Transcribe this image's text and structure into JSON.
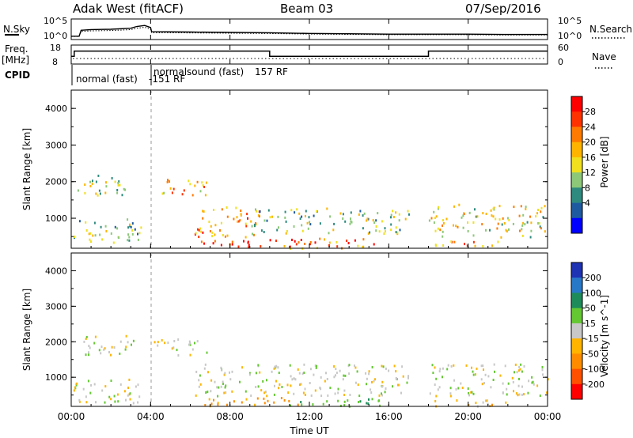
{
  "header": {
    "title": "Adak West (fitACF)",
    "beam": "Beam 03",
    "date": "07/Sep/2016"
  },
  "noise_panel": {
    "left_label": "N.Sky",
    "right_label": "N.Search",
    "left_ticks": [
      "10^5",
      "10^0"
    ],
    "right_ticks": [
      "10^5",
      "10^0"
    ]
  },
  "freq_panel": {
    "left_label_1": "Freq.",
    "left_label_2": "[MHz]",
    "right_label": "Nave",
    "left_ticks": [
      "18",
      "8"
    ],
    "right_ticks": [
      "60",
      "0"
    ],
    "steps": [
      {
        "t": 0.0,
        "v": 12
      },
      {
        "t": 0.15,
        "v": 12
      },
      {
        "t": 0.15,
        "v": 15
      },
      {
        "t": 10.0,
        "v": 15
      },
      {
        "t": 10.0,
        "v": 12
      },
      {
        "t": 18.0,
        "v": 12
      },
      {
        "t": 18.0,
        "v": 15
      },
      {
        "t": 24.0,
        "v": 15
      }
    ]
  },
  "cpid": {
    "label": "CPID",
    "segments": [
      {
        "text": "normal (fast)",
        "id": "-151 RF"
      },
      {
        "text": "normalsound (fast)",
        "id": "157 RF"
      }
    ]
  },
  "axes": {
    "ylabel": "Slant Range [km]",
    "xlabel": "Time UT",
    "y_ticks": [
      "4000",
      "3000",
      "2000",
      "1000"
    ],
    "x_ticks": [
      "00:00",
      "04:00",
      "08:00",
      "12:00",
      "16:00",
      "20:00",
      "00:00"
    ]
  },
  "power_colorbar": {
    "label": "Power [dB]",
    "ticks": [
      "28",
      "24",
      "20",
      "16",
      "12",
      "8",
      "4"
    ],
    "colors": [
      "#ff0000",
      "#ff3200",
      "#ff7a00",
      "#ffb400",
      "#f0e01e",
      "#8cc878",
      "#2e8a7e",
      "#1e5aa0",
      "#0000ff"
    ]
  },
  "velocity_colorbar": {
    "label": "Velocity [m s^-1]",
    "ticks": [
      "200",
      "100",
      "50",
      "15",
      "-15",
      "-50",
      "-100",
      "-200"
    ],
    "colors": [
      "#1e32b4",
      "#2878c8",
      "#1e8c5a",
      "#64c832",
      "#c8c8c8",
      "#ffb400",
      "#ff8c00",
      "#ff5000",
      "#ff0000"
    ]
  },
  "chart_data": [
    {
      "type": "line",
      "x_unit": "hours UT",
      "series": [
        {
          "name": "N.Sky",
          "x": [
            0,
            0.4,
            0.5,
            1,
            2,
            3,
            3.3,
            3.7,
            4.0,
            4.05,
            6,
            8,
            10,
            12,
            14,
            16,
            18,
            20,
            22,
            24
          ],
          "y": [
            0.5,
            0.5,
            2.2,
            2.4,
            2.5,
            2.8,
            3.3,
            3.6,
            3.0,
            1.8,
            1.7,
            1.6,
            1.5,
            1.3,
            1.2,
            1.1,
            1.1,
            1.1,
            1.0,
            1.0
          ]
        }
      ]
    },
    {
      "type": "heatmap",
      "quantity": "Power",
      "x_unit": "hours UT",
      "xlim": [
        0,
        24
      ],
      "ylim": [
        180,
        4500
      ],
      "clim": [
        0,
        30
      ],
      "blobs": [
        {
          "t0": 0.1,
          "t1": 3.5,
          "r0": 300,
          "r1": 1000,
          "v": 12
        },
        {
          "t0": 0.3,
          "t1": 3.2,
          "r0": 1650,
          "r1": 2200,
          "v": 12
        },
        {
          "t0": 4.0,
          "t1": 6.8,
          "r0": 1650,
          "r1": 2100,
          "v": 18
        },
        {
          "t0": 6.2,
          "t1": 9.5,
          "r0": 500,
          "r1": 1400,
          "v": 20
        },
        {
          "t0": 6.5,
          "t1": 11.5,
          "r0": 200,
          "r1": 450,
          "v": 26
        },
        {
          "t0": 9.0,
          "t1": 17.0,
          "r0": 600,
          "r1": 1300,
          "v": 12
        },
        {
          "t0": 11.0,
          "t1": 16.0,
          "r0": 200,
          "r1": 500,
          "v": 22
        },
        {
          "t0": 18.0,
          "t1": 24.0,
          "r0": 500,
          "r1": 1400,
          "v": 16
        },
        {
          "t0": 18.0,
          "t1": 22.0,
          "r0": 200,
          "r1": 400,
          "v": 20
        }
      ]
    },
    {
      "type": "heatmap",
      "quantity": "Velocity",
      "x_unit": "hours UT",
      "xlim": [
        0,
        24
      ],
      "ylim": [
        180,
        4500
      ],
      "clim": [
        -200,
        200
      ],
      "blobs": [
        {
          "t0": 0.1,
          "t1": 3.5,
          "r0": 300,
          "r1": 1000,
          "v": 0
        },
        {
          "t0": 0.3,
          "t1": 3.2,
          "r0": 1650,
          "r1": 2200,
          "v": 0
        },
        {
          "t0": 4.0,
          "t1": 6.8,
          "r0": 1650,
          "r1": 2100,
          "v": 0
        },
        {
          "t0": 6.2,
          "t1": 17.0,
          "r0": 500,
          "r1": 1400,
          "v": 0
        },
        {
          "t0": 6.5,
          "t1": 11.5,
          "r0": 200,
          "r1": 450,
          "v": -60
        },
        {
          "t0": 11.0,
          "t1": 16.0,
          "r0": 200,
          "r1": 450,
          "v": 40
        },
        {
          "t0": 18.0,
          "t1": 24.0,
          "r0": 500,
          "r1": 1400,
          "v": 0
        },
        {
          "t0": 18.0,
          "t1": 22.0,
          "r0": 200,
          "r1": 400,
          "v": -30
        }
      ]
    }
  ]
}
